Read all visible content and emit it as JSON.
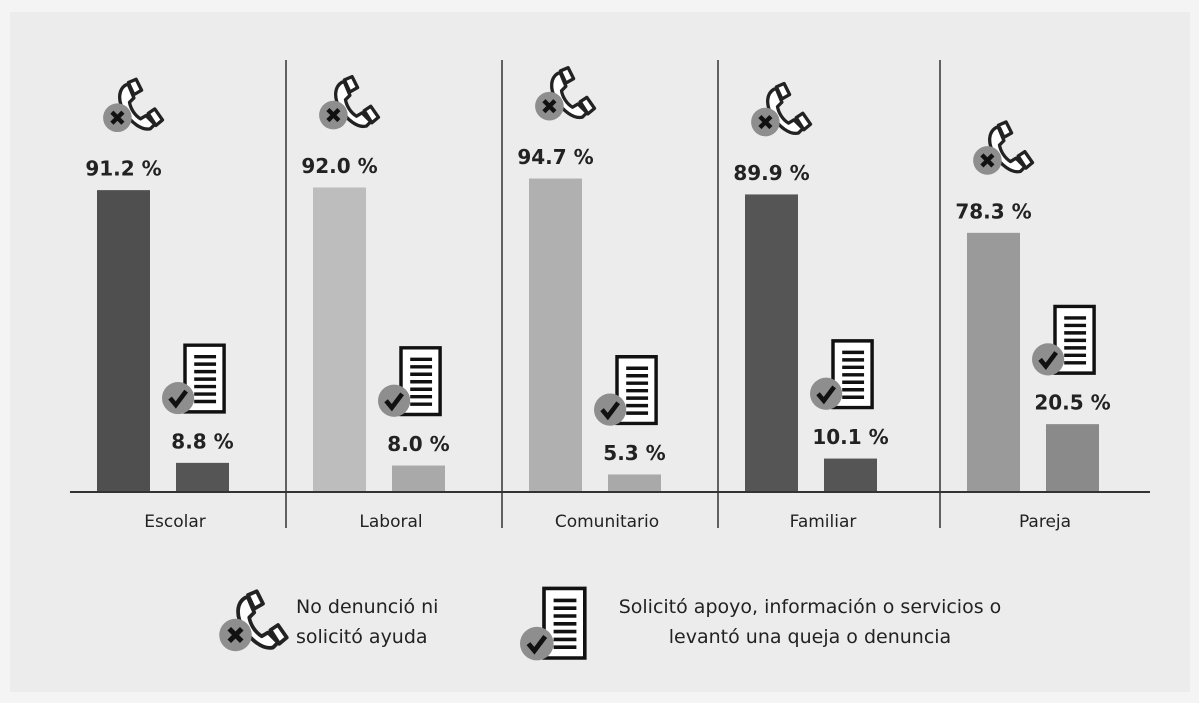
{
  "chart_data": {
    "type": "bar",
    "categories": [
      "Escolar",
      "Laboral",
      "Comunitario",
      "Familiar",
      "Pareja"
    ],
    "series": [
      {
        "name": "No denunció ni solicitó ayuda",
        "colors": [
          "#4f4f4f",
          "#bdbdbd",
          "#b0b0b0",
          "#555555",
          "#9a9a9a"
        ],
        "values": [
          91.2,
          92.0,
          94.7,
          89.9,
          78.3
        ],
        "value_labels": [
          "91.2 %",
          "92.0 %",
          "94.7 %",
          "89.9 %",
          "78.3 %"
        ]
      },
      {
        "name": "Solicitó apoyo, información o servicios o levantó una queja o denuncia",
        "colors": [
          "#555555",
          "#a9a9a9",
          "#a9a9a9",
          "#555555",
          "#8a8a8a"
        ],
        "values": [
          8.8,
          8.0,
          5.3,
          10.1,
          20.5
        ],
        "value_labels": [
          "8.8 %",
          "8.0 %",
          "5.3 %",
          "10.1 %",
          "20.5 %"
        ]
      }
    ]
  }
}
